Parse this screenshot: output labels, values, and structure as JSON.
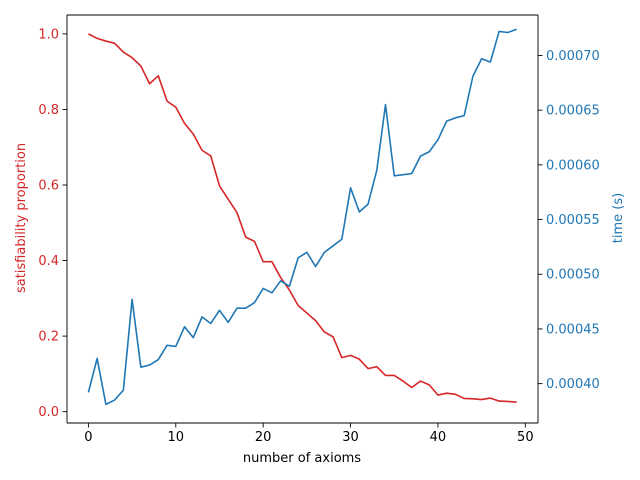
{
  "chart_data": {
    "type": "line",
    "xlabel": "number of axioms",
    "ylabel_left": "satisfiability proportion",
    "ylabel_right": "time (s)",
    "xlim": [
      -2.45,
      51.45
    ],
    "ylim_left": [
      -0.03,
      1.05
    ],
    "ylim_right": [
      0.000364,
      0.000737
    ],
    "x_ticks": [
      {
        "value": 0,
        "label": "0"
      },
      {
        "value": 10,
        "label": "10"
      },
      {
        "value": 20,
        "label": "20"
      },
      {
        "value": 30,
        "label": "30"
      },
      {
        "value": 40,
        "label": "40"
      },
      {
        "value": 50,
        "label": "50"
      }
    ],
    "y_left_ticks": [
      {
        "value": 0.0,
        "label": "0.0"
      },
      {
        "value": 0.2,
        "label": "0.2"
      },
      {
        "value": 0.4,
        "label": "0.4"
      },
      {
        "value": 0.6,
        "label": "0.6"
      },
      {
        "value": 0.8,
        "label": "0.8"
      },
      {
        "value": 1.0,
        "label": "1.0"
      }
    ],
    "y_right_ticks": [
      {
        "value": 0.0004,
        "label": "0.00040"
      },
      {
        "value": 0.00045,
        "label": "0.00045"
      },
      {
        "value": 0.0005,
        "label": "0.00050"
      },
      {
        "value": 0.00055,
        "label": "0.00055"
      },
      {
        "value": 0.0006,
        "label": "0.00060"
      },
      {
        "value": 0.00065,
        "label": "0.00065"
      },
      {
        "value": 0.0007,
        "label": "0.00070"
      }
    ],
    "x": [
      0,
      1,
      2,
      3,
      4,
      5,
      6,
      7,
      8,
      9,
      10,
      11,
      12,
      13,
      14,
      15,
      16,
      17,
      18,
      19,
      20,
      21,
      22,
      23,
      24,
      25,
      26,
      27,
      28,
      29,
      30,
      31,
      32,
      33,
      34,
      35,
      36,
      37,
      38,
      39,
      40,
      41,
      42,
      43,
      44,
      45,
      46,
      47,
      48,
      49
    ],
    "series": [
      {
        "axis": "left",
        "color": "#d62728",
        "values": [
          1.0,
          0.988,
          0.981,
          0.975,
          0.952,
          0.937,
          0.915,
          0.868,
          0.889,
          0.822,
          0.806,
          0.763,
          0.735,
          0.692,
          0.677,
          0.598,
          0.562,
          0.527,
          0.462,
          0.451,
          0.397,
          0.397,
          0.355,
          0.322,
          0.281,
          0.261,
          0.241,
          0.211,
          0.198,
          0.143,
          0.149,
          0.139,
          0.114,
          0.119,
          0.096,
          0.096,
          0.081,
          0.064,
          0.081,
          0.071,
          0.044,
          0.049,
          0.046,
          0.035,
          0.034,
          0.032,
          0.036,
          0.028,
          0.027,
          0.025
        ]
      },
      {
        "axis": "right",
        "color": "#1f77b4",
        "values": [
          0.000392,
          0.000423,
          0.000381,
          0.000385,
          0.000394,
          0.000477,
          0.000415,
          0.000417,
          0.000422,
          0.000435,
          0.000434,
          0.000452,
          0.000442,
          0.000461,
          0.000455,
          0.000467,
          0.000456,
          0.000469,
          0.000469,
          0.000474,
          0.000487,
          0.000483,
          0.000494,
          0.000489,
          0.000515,
          0.00052,
          0.000507,
          0.00052,
          0.000526,
          0.000532,
          0.000579,
          0.000557,
          0.000564,
          0.000595,
          0.000655,
          0.00059,
          0.000591,
          0.000592,
          0.000608,
          0.000612,
          0.000623,
          0.00064,
          0.000643,
          0.000645,
          0.000681,
          0.000697,
          0.000694,
          0.000722,
          0.000721,
          0.000724
        ]
      }
    ],
    "grid": false
  }
}
